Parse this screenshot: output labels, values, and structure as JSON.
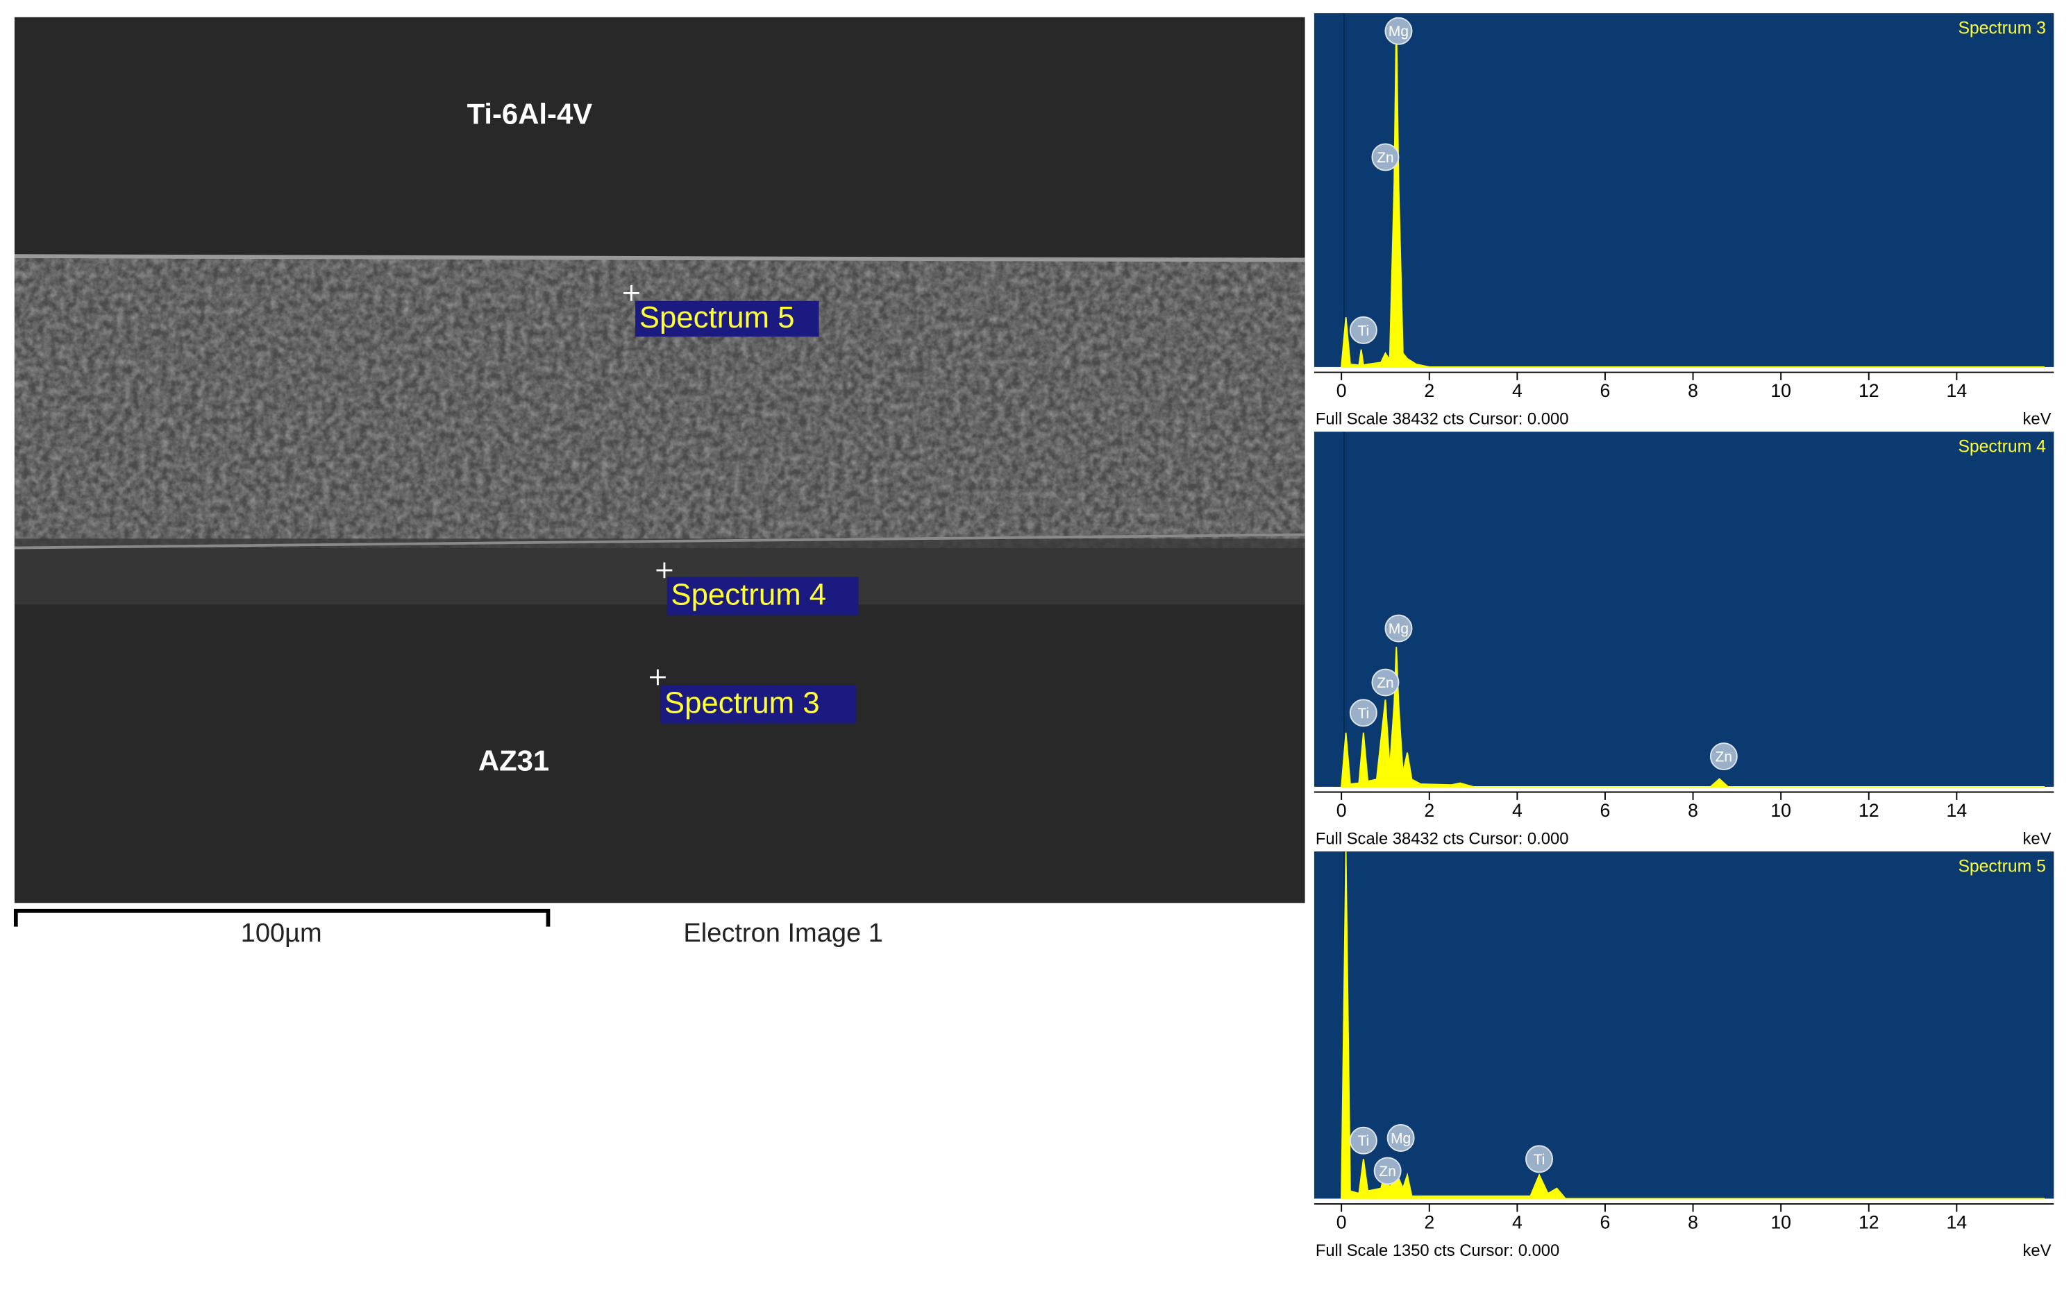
{
  "image": {
    "labels": [
      "Ti-6Al-4V",
      "AZ31"
    ],
    "spectrum_markers": [
      "Spectrum 5",
      "Spectrum 4",
      "Spectrum 3"
    ],
    "scale_bar": "100µm",
    "caption": "Electron Image 1"
  },
  "chart_data": [
    {
      "type": "area",
      "title": "Spectrum 3",
      "footer": "Full Scale 38432 cts Cursor: 0.000",
      "x_unit": "keV",
      "color": "#ffff00",
      "x": [
        0,
        0.1,
        0.2,
        0.4,
        0.45,
        0.5,
        0.6,
        0.9,
        1.0,
        1.1,
        1.2,
        1.25,
        1.3,
        1.4,
        1.5,
        1.7,
        2.0,
        16
      ],
      "values": [
        0,
        5400,
        300,
        200,
        1900,
        200,
        300,
        500,
        1500,
        800,
        20000,
        38000,
        20000,
        1500,
        900,
        300,
        0,
        0
      ],
      "peak_labels": [
        {
          "text": "Mg",
          "x": 1.3,
          "y": 36500
        },
        {
          "text": "Zn",
          "x": 1.0,
          "y": 22800
        },
        {
          "text": "Ti",
          "x": 0.5,
          "y": 4000
        }
      ],
      "xlim": [
        -0.56,
        16.0
      ],
      "ylim": [
        0,
        38432
      ],
      "xticks": [
        0,
        2,
        4,
        6,
        8,
        10,
        12,
        14
      ]
    },
    {
      "type": "area",
      "title": "Spectrum 4",
      "footer": "Full Scale 38432 cts Cursor: 0.000",
      "x_unit": "keV",
      "color": "#ffff00",
      "x": [
        0,
        0.1,
        0.2,
        0.4,
        0.5,
        0.6,
        0.8,
        1.0,
        1.1,
        1.2,
        1.25,
        1.3,
        1.4,
        1.5,
        1.6,
        1.8,
        2.5,
        2.7,
        3.0,
        8.4,
        8.6,
        8.8,
        16
      ],
      "values": [
        0,
        5860,
        300,
        400,
        5860,
        600,
        800,
        9430,
        2000,
        9000,
        15150,
        9000,
        1500,
        3700,
        800,
        300,
        200,
        400,
        0,
        0,
        860,
        0,
        0
      ],
      "peak_labels": [
        {
          "text": "Mg",
          "x": 1.3,
          "y": 17140
        },
        {
          "text": "Zn",
          "x": 1.0,
          "y": 11290
        },
        {
          "text": "Ti",
          "x": 0.5,
          "y": 8000
        },
        {
          "text": "Zn",
          "x": 8.7,
          "y": 3290
        }
      ],
      "xlim": [
        -0.56,
        16.0
      ],
      "ylim": [
        0,
        38432
      ],
      "xticks": [
        0,
        2,
        4,
        6,
        8,
        10,
        12,
        14
      ]
    },
    {
      "type": "area",
      "title": "Spectrum 5",
      "footer": "Full Scale 1350 cts Cursor: 0.000",
      "x_unit": "keV",
      "color": "#ffff00",
      "x": [
        0,
        0.1,
        0.2,
        0.4,
        0.5,
        0.6,
        0.9,
        1.0,
        1.1,
        1.2,
        1.25,
        1.3,
        1.4,
        1.5,
        1.6,
        4.3,
        4.5,
        4.7,
        4.9,
        5.1,
        16
      ],
      "values": [
        0,
        1350,
        30,
        20,
        154,
        30,
        40,
        118,
        40,
        90,
        144,
        80,
        40,
        92,
        10,
        10,
        92,
        20,
        40,
        0,
        0
      ],
      "peak_labels": [
        {
          "text": "Ti",
          "x": 0.5,
          "y": 226
        },
        {
          "text": "Mg",
          "x": 1.35,
          "y": 236
        },
        {
          "text": "Zn",
          "x": 1.05,
          "y": 108
        },
        {
          "text": "Ti",
          "x": 4.5,
          "y": 154
        }
      ],
      "xlim": [
        -0.56,
        16.0
      ],
      "ylim": [
        0,
        1350
      ],
      "xticks": [
        0,
        2,
        4,
        6,
        8,
        10,
        12,
        14
      ]
    }
  ]
}
